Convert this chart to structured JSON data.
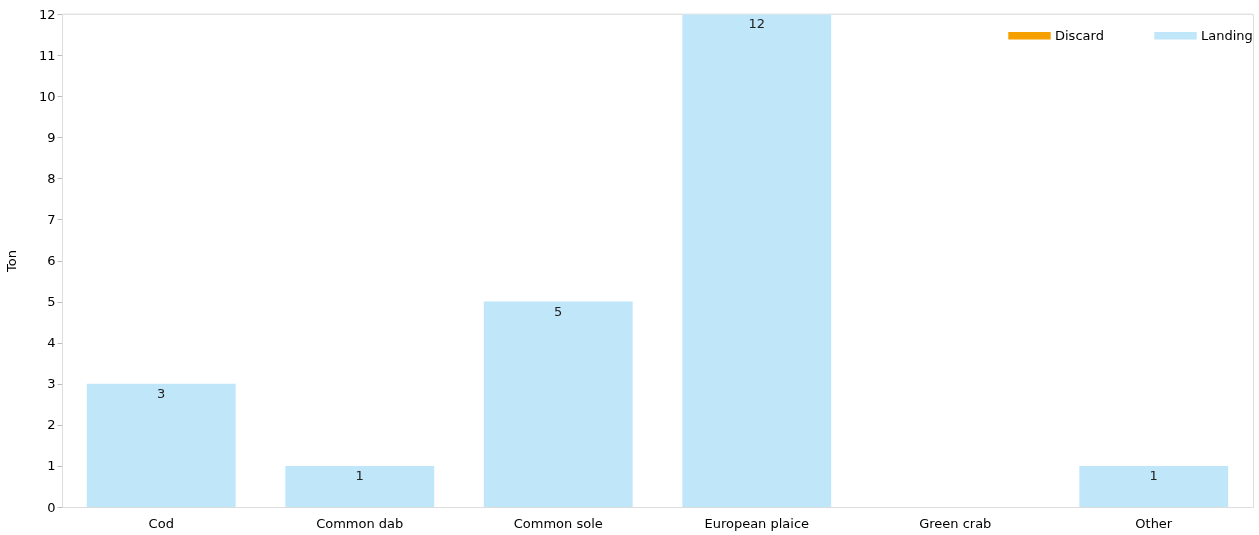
{
  "chart_data": {
    "type": "bar",
    "ylabel": "Ton",
    "legend": "top right",
    "grid": false,
    "categories": [
      "Cod",
      "Common dab",
      "Common sole",
      "European plaice",
      "Green crab",
      "Other"
    ],
    "series": [
      {
        "name": "Discard",
        "color": "#f5a000",
        "values": [
          0,
          0,
          0,
          0,
          0,
          0
        ]
      },
      {
        "name": "Landing",
        "color": "#c0e6fa",
        "values": [
          3,
          1,
          5,
          12,
          0,
          1
        ],
        "value_labels": [
          "3",
          "1",
          "5",
          "12",
          null,
          "1"
        ]
      }
    ],
    "ylim": [
      0,
      12
    ],
    "yticks": [
      0,
      1,
      2,
      3,
      4,
      5,
      6,
      7,
      8,
      9,
      10,
      11,
      12
    ]
  }
}
